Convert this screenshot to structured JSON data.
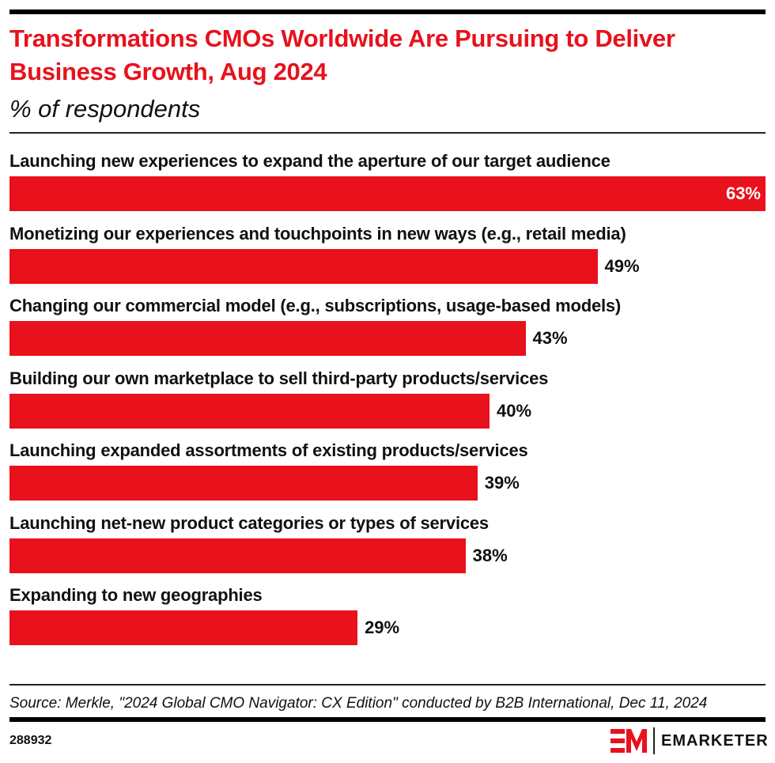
{
  "header": {
    "title": "Transformations CMOs Worldwide Are Pursuing to Deliver Business Growth, Aug 2024",
    "subtitle": "% of respondents"
  },
  "chart_data": {
    "type": "bar",
    "orientation": "horizontal",
    "title": "Transformations CMOs Worldwide Are Pursuing to Deliver Business Growth, Aug 2024",
    "subtitle": "% of respondents",
    "categories": [
      "Launching new experiences to expand the aperture of our target audience",
      "Monetizing our experiences and touchpoints in new ways (e.g., retail media)",
      "Changing our commercial model (e.g., subscriptions, usage-based models)",
      "Building our own marketplace to sell third-party products/services",
      "Launching expanded assortments of existing products/services",
      "Launching net-new product categories or types of services",
      "Expanding to new geographies"
    ],
    "values": [
      63,
      49,
      43,
      40,
      39,
      38,
      29
    ],
    "value_labels": [
      "63%",
      "49%",
      "43%",
      "40%",
      "39%",
      "38%",
      "29%"
    ],
    "unit": "%",
    "grid": false,
    "bar_color": "#e8111c"
  },
  "footer": {
    "source": "Source: Merkle, \"2024 Global CMO Navigator: CX Edition\" conducted by B2B International, Dec 11, 2024",
    "chart_id": "288932",
    "brand": "EMARKETER",
    "brand_color": "#e8111c"
  }
}
